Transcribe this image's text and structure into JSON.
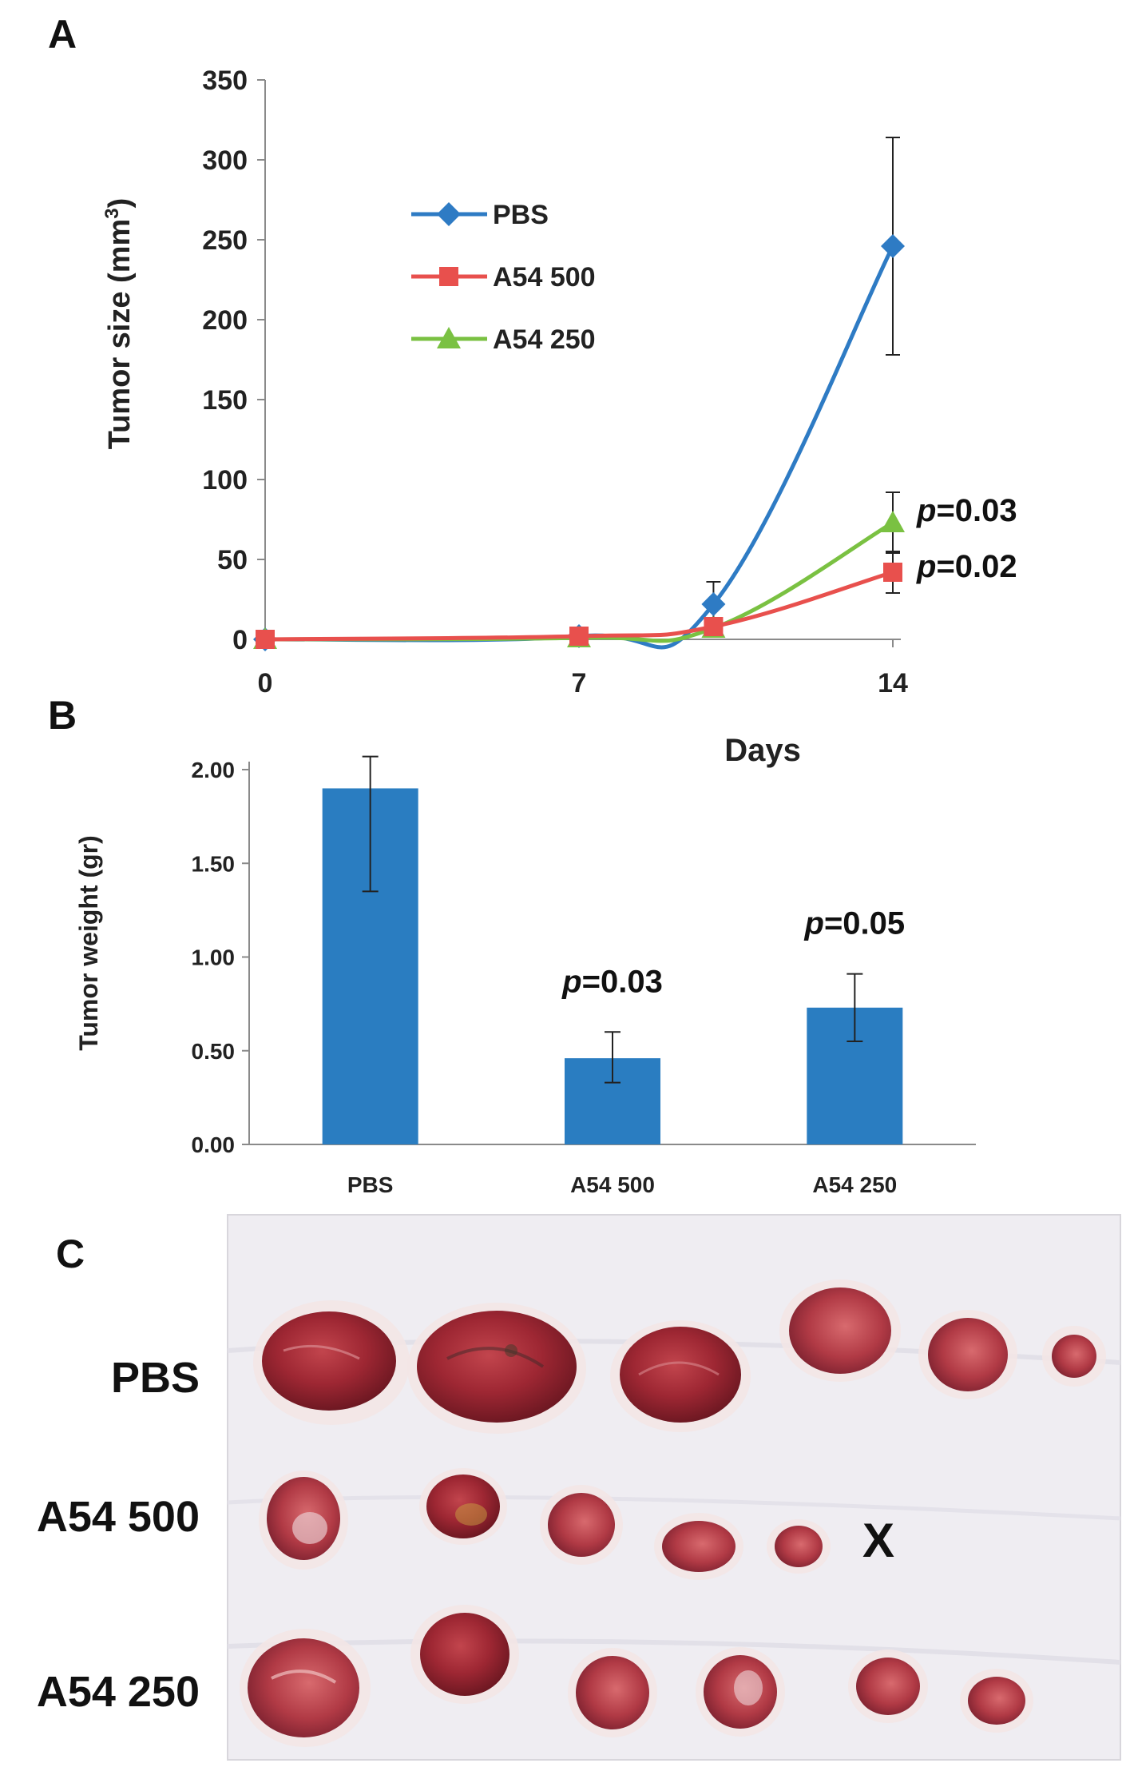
{
  "panels": {
    "a": "A",
    "b": "B",
    "c": "C"
  },
  "colors": {
    "PBS": "#2E7BC4",
    "A54 500": "#E8504D",
    "A54 250": "#7AC142",
    "bar": "#2A7DC1"
  },
  "chart_data": [
    {
      "type": "line",
      "panel": "A",
      "xlabel": "Days",
      "ylabel": "Tumor size (mm",
      "ylabel_sup": "3",
      "ylabel_close": ")",
      "ylim": [
        0,
        350
      ],
      "xlim": [
        0,
        14
      ],
      "yticks": [
        0,
        50,
        100,
        150,
        200,
        250,
        300,
        350
      ],
      "xticks": [
        0,
        7,
        14
      ],
      "x": [
        0,
        7,
        10,
        14
      ],
      "series": [
        {
          "name": "PBS",
          "marker": "diamond",
          "values": [
            0,
            2,
            22,
            246
          ],
          "err": [
            0,
            0,
            14,
            68
          ]
        },
        {
          "name": "A54 500",
          "marker": "square",
          "values": [
            0,
            2,
            8,
            42
          ],
          "err": [
            0,
            0,
            0,
            13
          ]
        },
        {
          "name": "A54 250",
          "marker": "triangle",
          "values": [
            0,
            1,
            7,
            73
          ],
          "err": [
            0,
            0,
            0,
            19
          ]
        }
      ],
      "annotations": [
        {
          "prefix": "p",
          "text": "=0.03",
          "series": "A54 250"
        },
        {
          "prefix": "p",
          "text": "=0.02",
          "series": "A54 500"
        }
      ]
    },
    {
      "type": "bar",
      "panel": "B",
      "ylabel": "Tumor weight (gr)",
      "ylim": [
        0,
        2
      ],
      "yticks": [
        "0.00",
        "0.50",
        "1.00",
        "1.50",
        "2.00"
      ],
      "categories": [
        "PBS",
        "A54 500",
        "A54 250"
      ],
      "values": [
        1.9,
        0.46,
        0.73
      ],
      "err_low": [
        0.55,
        0.13,
        0.18
      ],
      "err_high": [
        0.17,
        0.14,
        0.18
      ],
      "annotations": [
        {
          "category": "A54 500",
          "prefix": "p",
          "text": "=0.03"
        },
        {
          "category": "A54 250",
          "prefix": "p",
          "text": "=0.05"
        }
      ]
    }
  ],
  "panel_c": {
    "rows": [
      {
        "label": "PBS",
        "tumors": 6
      },
      {
        "label": "A54 500",
        "tumors": 5,
        "missing_mark": "X"
      },
      {
        "label": "A54 250",
        "tumors": 6
      }
    ]
  }
}
